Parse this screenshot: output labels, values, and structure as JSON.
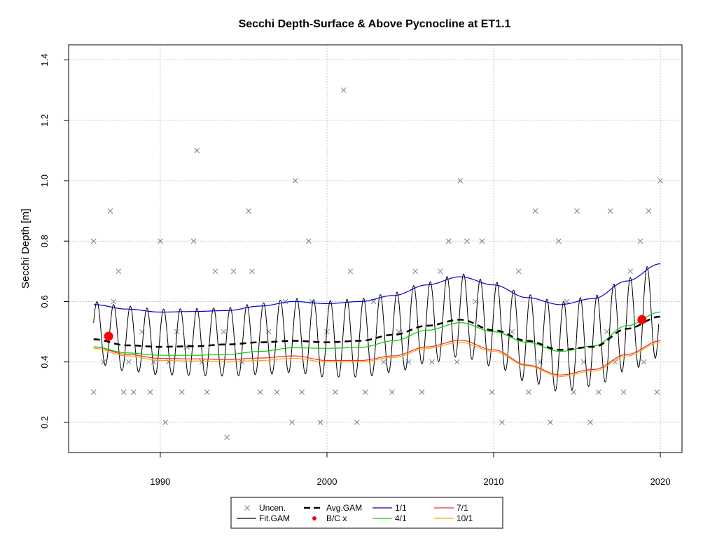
{
  "chart_data": {
    "type": "line",
    "title": "Secchi Depth-Surface & Above Pycnocline at ET1.1",
    "xlabel": "",
    "ylabel": "Secchi Depth [m]",
    "xlim": [
      1984.5,
      2021.3
    ],
    "ylim": [
      0.1,
      1.45
    ],
    "x_ticks": [
      1990,
      2000,
      2010,
      2020
    ],
    "y_ticks": [
      0.2,
      0.4,
      0.6,
      0.8,
      1.0,
      1.2,
      1.4
    ],
    "grid": true,
    "legend_position": "bottom",
    "legend": [
      {
        "label": "Uncen.",
        "kind": "cross",
        "color": "#708090"
      },
      {
        "label": "Fit.GAM",
        "kind": "line",
        "color": "#000000"
      },
      {
        "label": "Avg.GAM",
        "kind": "dashed",
        "color": "#000000"
      },
      {
        "label": "B/C x",
        "kind": "dot",
        "color": "#ff0000"
      },
      {
        "label": "1/1",
        "kind": "line",
        "color": "#0000cd"
      },
      {
        "label": "4/1",
        "kind": "line",
        "color": "#00cd00"
      },
      {
        "label": "7/1",
        "kind": "line",
        "color": "#ee2c2c"
      },
      {
        "label": "10/1",
        "kind": "line",
        "color": "#ffa500"
      }
    ],
    "series": [
      {
        "name": "Avg.GAM",
        "color": "#000000",
        "style": "dashed",
        "x": [
          1986,
          1988,
          1990,
          1992,
          1994,
          1996,
          1998,
          2000,
          2002,
          2004,
          2006,
          2008,
          2010,
          2012,
          2014,
          2016,
          2018,
          2020
        ],
        "y": [
          0.475,
          0.455,
          0.45,
          0.452,
          0.458,
          0.465,
          0.47,
          0.465,
          0.47,
          0.49,
          0.52,
          0.54,
          0.505,
          0.47,
          0.44,
          0.45,
          0.51,
          0.55
        ]
      },
      {
        "name": "1/1",
        "color": "#0000cd",
        "style": "solid",
        "x": [
          1986,
          1988,
          1990,
          1992,
          1994,
          1996,
          1998,
          2000,
          2002,
          2004,
          2006,
          2008,
          2010,
          2012,
          2014,
          2016,
          2018,
          2020
        ],
        "y": [
          0.59,
          0.575,
          0.565,
          0.567,
          0.57,
          0.585,
          0.6,
          0.593,
          0.6,
          0.62,
          0.655,
          0.682,
          0.655,
          0.613,
          0.59,
          0.61,
          0.668,
          0.725
        ]
      },
      {
        "name": "4/1",
        "color": "#00cd00",
        "style": "solid",
        "x": [
          1986,
          1988,
          1990,
          1992,
          1994,
          1996,
          1998,
          2000,
          2002,
          2004,
          2006,
          2008,
          2010,
          2012,
          2014,
          2016,
          2018,
          2020
        ],
        "y": [
          0.45,
          0.43,
          0.422,
          0.422,
          0.425,
          0.435,
          0.447,
          0.445,
          0.448,
          0.47,
          0.505,
          0.53,
          0.5,
          0.465,
          0.435,
          0.453,
          0.52,
          0.565
        ]
      },
      {
        "name": "7/1",
        "color": "#ee2c2c",
        "style": "solid",
        "x": [
          1986,
          1988,
          1990,
          1992,
          1994,
          1996,
          1998,
          2000,
          2002,
          2004,
          2006,
          2008,
          2010,
          2012,
          2014,
          2016,
          2018,
          2020
        ],
        "y": [
          0.45,
          0.425,
          0.412,
          0.41,
          0.408,
          0.413,
          0.42,
          0.405,
          0.405,
          0.42,
          0.45,
          0.472,
          0.44,
          0.39,
          0.357,
          0.375,
          0.425,
          0.47
        ]
      },
      {
        "name": "10/1",
        "color": "#ffa500",
        "style": "solid",
        "x": [
          1986,
          1988,
          1990,
          1992,
          1994,
          1996,
          1998,
          2000,
          2002,
          2004,
          2006,
          2008,
          2010,
          2012,
          2014,
          2016,
          2018,
          2020
        ],
        "y": [
          0.445,
          0.42,
          0.405,
          0.403,
          0.4,
          0.405,
          0.412,
          0.4,
          0.4,
          0.415,
          0.445,
          0.465,
          0.435,
          0.387,
          0.352,
          0.37,
          0.42,
          0.465
        ]
      }
    ],
    "fit_gam": {
      "name": "Fit.GAM",
      "color": "#000000",
      "x_start": 1986.0,
      "x_end": 2019.9,
      "cycles_per_year": 1,
      "note_peak_trough_follow": [
        "1/1",
        "7/1"
      ]
    },
    "bc_points": {
      "name": "B/C x",
      "color": "#ff0000",
      "x": [
        1986.9,
        2018.9
      ],
      "y": [
        0.485,
        0.54
      ]
    },
    "observations": {
      "name": "Uncen.",
      "color": "#708090",
      "x": [
        1986.0,
        1986.0,
        1986.6,
        1987.0,
        1987.2,
        1987.5,
        1987.8,
        1988.1,
        1988.4,
        1988.9,
        1989.4,
        1989.6,
        1990.0,
        1990.3,
        1990.5,
        1991.0,
        1991.3,
        1991.6,
        1992.0,
        1992.2,
        1992.5,
        1992.8,
        1993.3,
        1993.8,
        1994.0,
        1994.4,
        1994.9,
        1995.3,
        1995.5,
        1996.0,
        1996.5,
        1997.0,
        1997.5,
        1997.9,
        1998.1,
        1998.5,
        1998.9,
        1999.1,
        1999.6,
        2000.0,
        2000.5,
        2001.0,
        2001.4,
        2001.8,
        2002.3,
        2002.8,
        2003.4,
        2003.9,
        2004.3,
        2004.9,
        2005.3,
        2005.7,
        2006.3,
        2006.8,
        2007.3,
        2007.8,
        2008.0,
        2008.4,
        2008.9,
        2009.3,
        2009.9,
        2010.5,
        2011.1,
        2011.5,
        2012.1,
        2012.5,
        2012.8,
        2013.4,
        2013.9,
        2014.4,
        2014.8,
        2015.0,
        2015.4,
        2015.8,
        2016.3,
        2016.8,
        2017.0,
        2017.3,
        2017.8,
        2018.2,
        2018.8,
        2019.0,
        2019.3,
        2019.8,
        2020.0
      ],
      "y": [
        0.8,
        0.3,
        0.4,
        0.9,
        0.6,
        0.7,
        0.3,
        0.4,
        0.3,
        0.5,
        0.3,
        0.4,
        0.8,
        0.2,
        0.4,
        0.5,
        0.3,
        0.45,
        0.8,
        1.1,
        0.4,
        0.3,
        0.7,
        0.5,
        0.15,
        0.7,
        0.4,
        0.9,
        0.7,
        0.3,
        0.5,
        0.3,
        0.6,
        0.2,
        1.0,
        0.3,
        0.8,
        0.6,
        0.2,
        0.5,
        0.3,
        1.3,
        0.7,
        0.2,
        0.3,
        0.6,
        0.4,
        0.3,
        0.5,
        0.4,
        0.7,
        0.3,
        0.4,
        0.7,
        0.8,
        0.4,
        1.0,
        0.8,
        0.6,
        0.8,
        0.3,
        0.2,
        0.5,
        0.7,
        0.3,
        0.9,
        0.4,
        0.2,
        0.8,
        0.6,
        0.3,
        0.9,
        0.4,
        0.2,
        0.3,
        0.5,
        0.9,
        0.4,
        0.3,
        0.7,
        0.8,
        0.4,
        0.9,
        0.3,
        1.0
      ]
    }
  }
}
